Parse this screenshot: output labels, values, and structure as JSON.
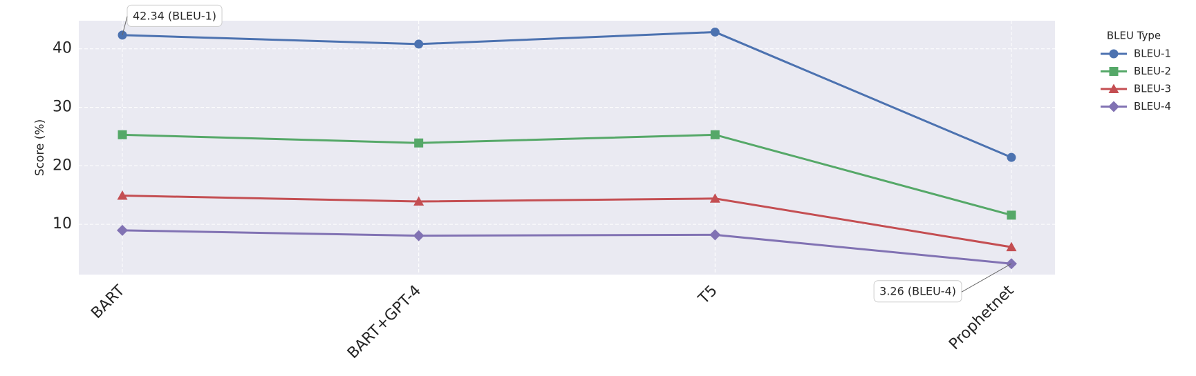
{
  "chart_data": {
    "type": "line",
    "y_label": "Score (%)",
    "categories": [
      "BART",
      "BART+GPT-4",
      "T5",
      "Prophetnet"
    ],
    "series": [
      {
        "name": "BLEU-1",
        "color": "#4c72b0",
        "marker": "circle",
        "values": [
          42.34,
          40.8,
          42.86,
          21.43
        ]
      },
      {
        "name": "BLEU-2",
        "color": "#55a868",
        "marker": "square",
        "values": [
          25.3,
          23.9,
          25.3,
          11.56
        ]
      },
      {
        "name": "BLEU-3",
        "color": "#c44e52",
        "marker": "triangle",
        "values": [
          14.9,
          13.9,
          14.4,
          6.1
        ]
      },
      {
        "name": "BLEU-4",
        "color": "#8172b3",
        "marker": "diamond",
        "values": [
          8.96,
          8.05,
          8.2,
          3.26
        ]
      }
    ],
    "ylim": [
      1.4,
      44.8
    ],
    "yticks": [
      10,
      20,
      30,
      40
    ],
    "grid": true,
    "legend_title": "BLEU Type",
    "legend": "outside-right",
    "annotations": [
      {
        "text": "42.34 (BLEU-1)"
      },
      {
        "text": "3.26 (BLEU-4)"
      }
    ]
  }
}
